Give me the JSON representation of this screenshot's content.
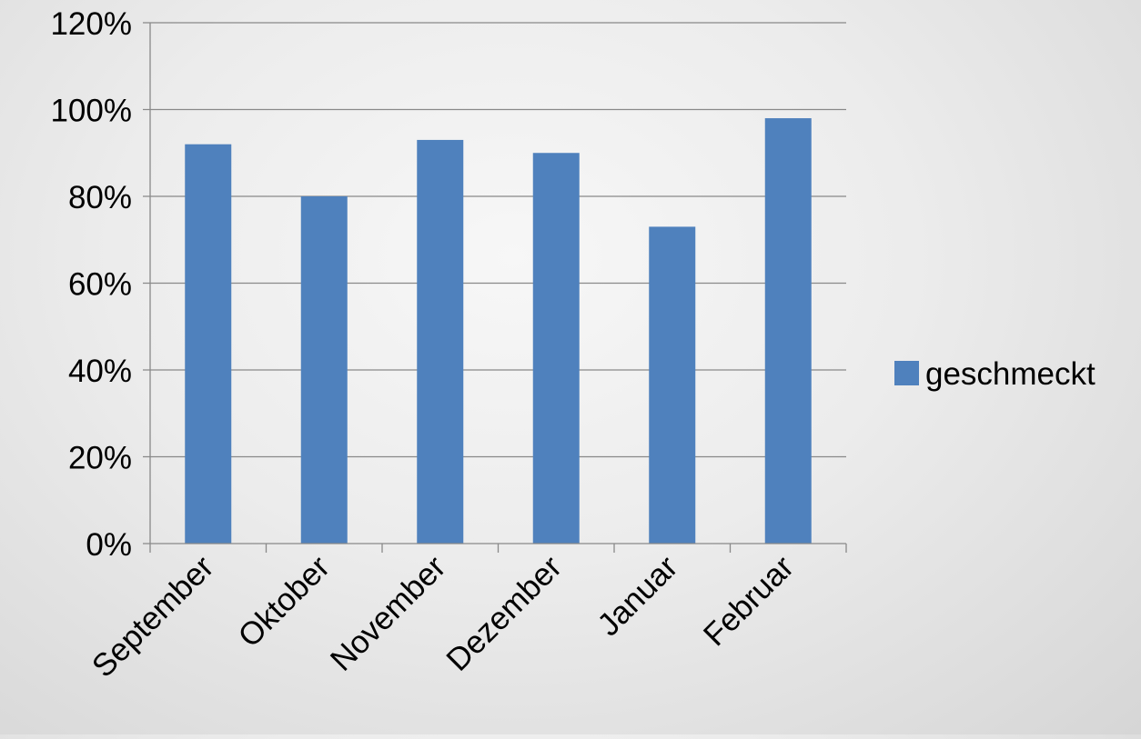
{
  "chart_data": {
    "type": "bar",
    "title": "",
    "xlabel": "",
    "ylabel": "",
    "categories": [
      "September",
      "Oktober",
      "November",
      "Dezember",
      "Januar",
      "Februar"
    ],
    "series": [
      {
        "name": "geschmeckt",
        "values": [
          0.92,
          0.8,
          0.93,
          0.9,
          0.73,
          0.98
        ],
        "color": "#4f81bd"
      }
    ],
    "ylim": [
      0,
      1.2
    ],
    "yticks": [
      {
        "value": 0,
        "label": "0%"
      },
      {
        "value": 0.2,
        "label": "20%"
      },
      {
        "value": 0.4,
        "label": "40%"
      },
      {
        "value": 0.6,
        "label": "60%"
      },
      {
        "value": 0.8,
        "label": "80%"
      },
      {
        "value": 1.0,
        "label": "100%"
      },
      {
        "value": 1.2,
        "label": "120%"
      }
    ],
    "grid": true,
    "legend": "right",
    "gridline_color": "#898989",
    "axis_color": "#898989"
  }
}
